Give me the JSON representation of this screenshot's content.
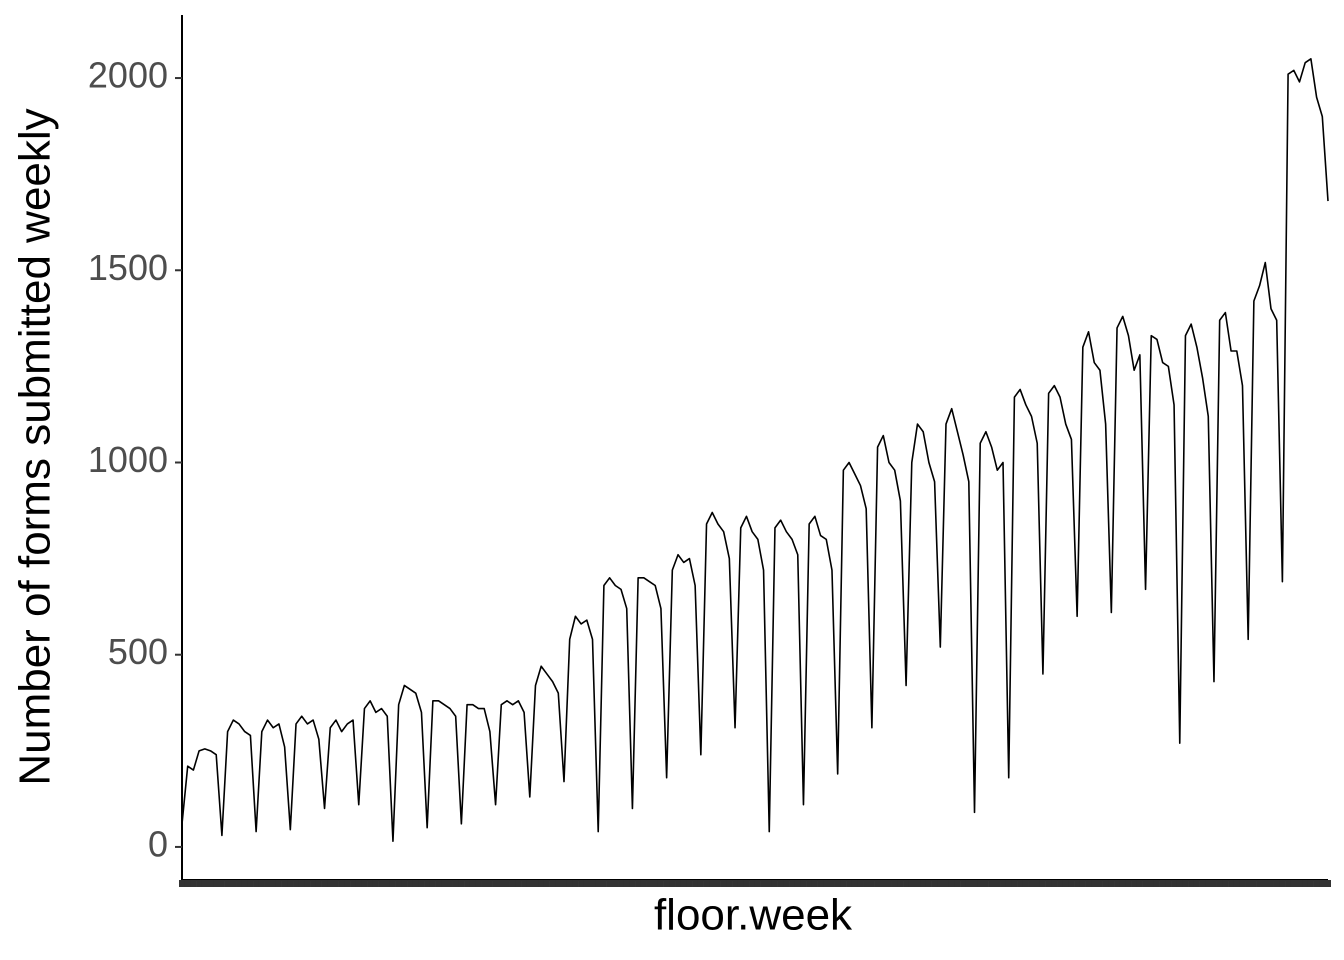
{
  "chart_data": {
    "type": "line",
    "xlabel": "floor.week",
    "ylabel": "Number of forms submitted weekly",
    "color": "#000000",
    "ylim": [
      -86,
      2164
    ],
    "yticks": [
      0,
      500,
      1000,
      1500,
      2000
    ],
    "categories": [
      null,
      null,
      null,
      null,
      null,
      null,
      null,
      null,
      null,
      null,
      null,
      null,
      null,
      null,
      null,
      null,
      null,
      null,
      null,
      null,
      null,
      null,
      null,
      null,
      null,
      null,
      null,
      null,
      null,
      null,
      null,
      null,
      null,
      null,
      null,
      null,
      null,
      null,
      null,
      null,
      null,
      null,
      null,
      null,
      null,
      null,
      null,
      null,
      null,
      null,
      null,
      null,
      null,
      null,
      null,
      null,
      null,
      null,
      null,
      null,
      null,
      null,
      null,
      null,
      null,
      null,
      null,
      null,
      null,
      null,
      null,
      null,
      null,
      null,
      null,
      null,
      null,
      null,
      null,
      null,
      null,
      null,
      null,
      null,
      null,
      null,
      null,
      null,
      null,
      null,
      null,
      null,
      null,
      null,
      null,
      null,
      null,
      null,
      null,
      null,
      null,
      null,
      null,
      null,
      null,
      null,
      null,
      null,
      null,
      null,
      null,
      null,
      null,
      null,
      null,
      null,
      null,
      null,
      null,
      null,
      null,
      null,
      null,
      null,
      null,
      null,
      null,
      null,
      null,
      null,
      null,
      null,
      null,
      null,
      null,
      null,
      null,
      null,
      null,
      null,
      null,
      null,
      null,
      null,
      null,
      null,
      null,
      null,
      null,
      null,
      null,
      null,
      null,
      null,
      null,
      null,
      null,
      null,
      null,
      null,
      null,
      null,
      null,
      null,
      null,
      null,
      null,
      null,
      null,
      null,
      null,
      null,
      null,
      null,
      null,
      null,
      null,
      null,
      null,
      null,
      null,
      null,
      null,
      null,
      null,
      null,
      null,
      null,
      null,
      null,
      null,
      null,
      null,
      null,
      null,
      null,
      null,
      null,
      null,
      null,
      null,
      null
    ],
    "values": [
      60,
      210,
      200,
      250,
      255,
      250,
      240,
      30,
      300,
      330,
      320,
      300,
      290,
      40,
      300,
      330,
      310,
      320,
      260,
      45,
      320,
      340,
      320,
      330,
      280,
      100,
      310,
      330,
      300,
      320,
      330,
      110,
      360,
      380,
      350,
      360,
      340,
      15,
      370,
      420,
      410,
      400,
      350,
      50,
      380,
      380,
      370,
      360,
      340,
      60,
      370,
      370,
      360,
      360,
      300,
      110,
      370,
      380,
      370,
      380,
      350,
      130,
      420,
      470,
      450,
      430,
      400,
      170,
      540,
      600,
      580,
      590,
      540,
      40,
      680,
      700,
      680,
      670,
      620,
      100,
      700,
      700,
      690,
      680,
      620,
      180,
      720,
      760,
      740,
      750,
      680,
      240,
      840,
      870,
      840,
      820,
      750,
      310,
      830,
      860,
      820,
      800,
      720,
      40,
      830,
      850,
      820,
      800,
      760,
      110,
      840,
      860,
      810,
      800,
      720,
      190,
      980,
      1000,
      970,
      940,
      880,
      310,
      1040,
      1070,
      1000,
      980,
      900,
      420,
      1000,
      1100,
      1080,
      1000,
      950,
      520,
      1100,
      1140,
      1080,
      1020,
      950,
      90,
      1050,
      1080,
      1040,
      980,
      1000,
      180,
      1170,
      1190,
      1150,
      1120,
      1050,
      450,
      1180,
      1200,
      1170,
      1100,
      1060,
      600,
      1300,
      1340,
      1260,
      1240,
      1100,
      610,
      1350,
      1380,
      1330,
      1240,
      1280,
      670,
      1330,
      1320,
      1260,
      1250,
      1150,
      270,
      1330,
      1360,
      1300,
      1220,
      1120,
      430,
      1370,
      1390,
      1290,
      1290,
      1200,
      540,
      1420,
      1460,
      1520,
      1400,
      1370,
      690,
      2010,
      2020,
      1990,
      2040,
      2050,
      1950,
      1900,
      1680
    ]
  }
}
